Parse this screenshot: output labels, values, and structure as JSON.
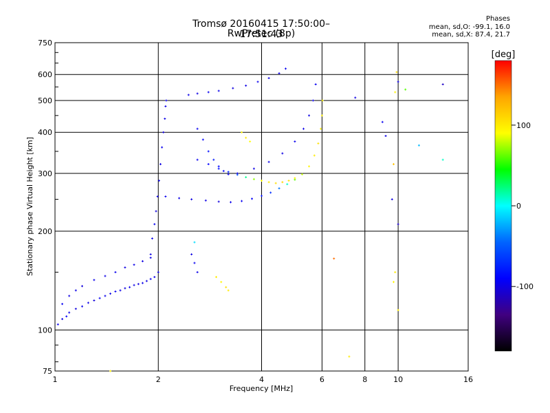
{
  "header": {
    "title": "Tromsø 20160415 17:50:00–17:51:43",
    "subtitle": "RwPretec (8p)"
  },
  "stats": {
    "heading": "Phases",
    "line1": "mean, sd,O: -99.1, 16.0",
    "line2": "mean, sd,X:  87.4, 21.7"
  },
  "colorbar": {
    "label": "[deg]",
    "ticks": [
      "100",
      "0",
      "-100"
    ],
    "colors": [
      "#ff0000",
      "#ffa500",
      "#ffff00",
      "#00ff00",
      "#00ffff",
      "#0064ff",
      "#0000ff",
      "#400080",
      "#000000"
    ]
  },
  "chart_data": {
    "type": "scatter",
    "title": "Tromsø 20160415 17:50:00–17:51:43",
    "subtitle": "RwPretec (8p)",
    "xlabel": "Frequency [MHz]",
    "ylabel": "Stationary phase Virtual Height [km]",
    "x_scale": "log",
    "y_scale": "log",
    "xlim": [
      1,
      16
    ],
    "ylim": [
      75,
      750
    ],
    "x_ticks": [
      1,
      2,
      4,
      6,
      8,
      10,
      16
    ],
    "y_ticks": [
      75,
      100,
      200,
      300,
      400,
      500,
      600,
      750
    ],
    "grid": true,
    "colorbar_label": "[deg]",
    "colorbar_range": [
      -180,
      180
    ],
    "series": [
      {
        "points": [
          [
            1.02,
            104,
            -95
          ],
          [
            1.05,
            108,
            -100
          ],
          [
            1.08,
            110,
            -92
          ],
          [
            1.1,
            113,
            -98
          ],
          [
            1.15,
            116,
            -101
          ],
          [
            1.2,
            118,
            -96
          ],
          [
            1.25,
            121,
            -99
          ],
          [
            1.3,
            123,
            -103
          ],
          [
            1.35,
            125,
            -94
          ],
          [
            1.4,
            127,
            -97
          ],
          [
            1.45,
            129,
            -100
          ],
          [
            1.5,
            131,
            -95
          ],
          [
            1.55,
            132,
            -98
          ],
          [
            1.6,
            134,
            -102
          ],
          [
            1.65,
            135,
            -96
          ],
          [
            1.7,
            137,
            -99
          ],
          [
            1.75,
            138,
            -101
          ],
          [
            1.8,
            139,
            -97
          ],
          [
            1.85,
            141,
            -100
          ],
          [
            1.9,
            143,
            -95
          ],
          [
            1.95,
            145,
            -98
          ],
          [
            2.0,
            150,
            -100
          ]
        ]
      },
      {
        "points": [
          [
            1.05,
            120,
            -95
          ],
          [
            1.1,
            127,
            -100
          ],
          [
            1.15,
            132,
            -98
          ],
          [
            1.2,
            136,
            -102
          ],
          [
            1.3,
            142,
            -97
          ],
          [
            1.4,
            146,
            -99
          ],
          [
            1.5,
            150,
            -96
          ],
          [
            1.6,
            155,
            -101
          ],
          [
            1.7,
            158,
            -98
          ],
          [
            1.8,
            162,
            -100
          ],
          [
            1.9,
            166,
            -97
          ]
        ]
      },
      {
        "points": [
          [
            1.9,
            170,
            -100
          ],
          [
            1.92,
            190,
            -98
          ],
          [
            1.95,
            210,
            -95
          ],
          [
            1.97,
            230,
            -102
          ],
          [
            1.99,
            255,
            -99
          ],
          [
            2.01,
            285,
            -97
          ],
          [
            2.03,
            320,
            -100
          ],
          [
            2.05,
            360,
            -96
          ],
          [
            2.07,
            400,
            -101
          ],
          [
            2.09,
            440,
            -98
          ],
          [
            2.1,
            480,
            -100
          ],
          [
            2.11,
            500,
            -97
          ]
        ]
      },
      {
        "points": [
          [
            2.1,
            255,
            -96
          ],
          [
            2.3,
            252,
            -98
          ],
          [
            2.5,
            250,
            -100
          ],
          [
            2.75,
            248,
            -99
          ],
          [
            3.0,
            246,
            -102
          ],
          [
            3.25,
            245,
            -97
          ],
          [
            3.5,
            247,
            -95
          ],
          [
            3.75,
            251,
            -92
          ],
          [
            4.0,
            256,
            -85
          ],
          [
            4.25,
            262,
            -70
          ],
          [
            4.5,
            270,
            -40
          ],
          [
            4.75,
            278,
            10
          ],
          [
            5.0,
            287,
            60
          ],
          [
            5.25,
            298,
            80
          ],
          [
            5.5,
            315,
            95
          ],
          [
            5.7,
            340,
            100
          ],
          [
            5.85,
            370,
            105
          ],
          [
            5.95,
            410,
            100
          ],
          [
            6.0,
            450,
            98
          ],
          [
            6.02,
            500,
            95
          ]
        ]
      },
      {
        "points": [
          [
            2.6,
            330,
            -95
          ],
          [
            2.8,
            320,
            -90
          ],
          [
            3.0,
            310,
            -85
          ],
          [
            3.2,
            303,
            -75
          ],
          [
            3.4,
            297,
            -50
          ],
          [
            3.6,
            292,
            20
          ],
          [
            3.8,
            288,
            70
          ],
          [
            4.0,
            285,
            90
          ],
          [
            4.2,
            282,
            100
          ],
          [
            4.4,
            280,
            105
          ],
          [
            4.6,
            282,
            110
          ],
          [
            4.8,
            285,
            105
          ],
          [
            5.0,
            290,
            100
          ]
        ]
      },
      {
        "points": [
          [
            3.4,
            300,
            -98
          ],
          [
            3.8,
            310,
            -99
          ],
          [
            4.2,
            325,
            -97
          ],
          [
            4.6,
            345,
            -100
          ],
          [
            5.0,
            375,
            -96
          ],
          [
            5.3,
            410,
            -98
          ],
          [
            5.5,
            450,
            -100
          ],
          [
            5.65,
            500,
            -97
          ],
          [
            5.75,
            560,
            -95
          ]
        ]
      },
      {
        "points": [
          [
            2.45,
            520,
            -98
          ],
          [
            2.6,
            525,
            -100
          ],
          [
            2.8,
            530,
            -95
          ],
          [
            3.0,
            535,
            -97
          ],
          [
            3.3,
            545,
            -101
          ],
          [
            3.6,
            555,
            -99
          ],
          [
            3.9,
            570,
            -96
          ],
          [
            4.2,
            585,
            -98
          ],
          [
            4.5,
            605,
            -100
          ],
          [
            4.7,
            625,
            -95
          ]
        ]
      },
      {
        "points": [
          [
            2.6,
            410,
            -95
          ],
          [
            2.7,
            380,
            -90
          ],
          [
            2.8,
            350,
            -85
          ],
          [
            2.9,
            330,
            -80
          ],
          [
            3.0,
            315,
            -88
          ],
          [
            3.1,
            305,
            -92
          ],
          [
            3.2,
            298,
            -95
          ]
        ]
      },
      {
        "points": [
          [
            3.5,
            400,
            95
          ],
          [
            3.6,
            385,
            100
          ],
          [
            3.7,
            375,
            90
          ],
          [
            2.95,
            145,
            100
          ],
          [
            3.05,
            140,
            95
          ],
          [
            3.15,
            135,
            105
          ],
          [
            3.2,
            132,
            100
          ],
          [
            2.5,
            170,
            -100
          ],
          [
            2.55,
            160,
            -95
          ],
          [
            2.6,
            150,
            -98
          ],
          [
            2.55,
            185,
            -10
          ]
        ]
      },
      {
        "points": [
          [
            7.5,
            510,
            -100
          ],
          [
            9.0,
            430,
            -95
          ],
          [
            9.2,
            390,
            -98
          ],
          [
            9.8,
            530,
            95
          ],
          [
            9.9,
            610,
            110
          ],
          [
            10.0,
            570,
            -100
          ],
          [
            10.5,
            540,
            60
          ],
          [
            11.5,
            365,
            -20
          ],
          [
            13.5,
            560,
            -110
          ],
          [
            13.5,
            330,
            10
          ],
          [
            9.7,
            320,
            120
          ],
          [
            9.6,
            250,
            -100
          ],
          [
            10.0,
            210,
            -110
          ],
          [
            9.8,
            150,
            100
          ],
          [
            9.7,
            140,
            95
          ],
          [
            10.0,
            115,
            98
          ],
          [
            6.5,
            165,
            150
          ],
          [
            7.2,
            83,
            100
          ],
          [
            1.45,
            75,
            100
          ]
        ]
      }
    ]
  }
}
